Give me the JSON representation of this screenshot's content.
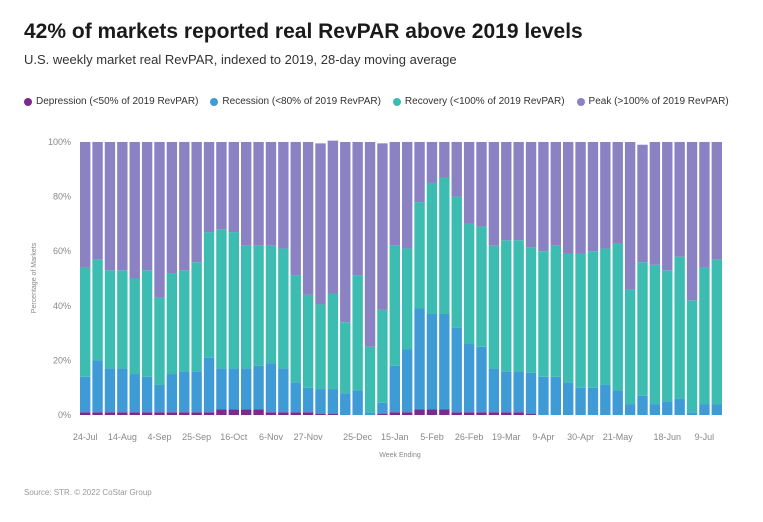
{
  "header": {
    "title": "42% of markets reported real RevPAR above 2019 levels",
    "subtitle": "U.S. weekly market real RevPAR, indexed to 2019, 28-day moving average"
  },
  "footer": {
    "source": "Source: STR. © 2022 CoStar Group"
  },
  "chart_data": {
    "type": "bar",
    "stacked": true,
    "title": "42% of markets reported real RevPAR above 2019 levels",
    "subtitle": "U.S. weekly market real RevPAR, indexed to 2019, 28-day moving average",
    "xlabel": "Week Ending",
    "ylabel": "Percentage of Markets",
    "ylim": [
      0,
      100
    ],
    "y_ticks": [
      "0%",
      "20%",
      "40%",
      "60%",
      "80%",
      "100%"
    ],
    "x_tick_labels": [
      "24-Jul",
      "14-Aug",
      "4-Sep",
      "25-Sep",
      "16-Oct",
      "6-Nov",
      "27-Nov",
      "25-Dec",
      "15-Jan",
      "5-Feb",
      "26-Feb",
      "19-Mar",
      "9-Apr",
      "30-Apr",
      "21-May",
      "18-Jun",
      "9-Jul"
    ],
    "x_tick_index": [
      0,
      3,
      6,
      9,
      12,
      15,
      18,
      22,
      25,
      28,
      31,
      34,
      37,
      40,
      43,
      47,
      50
    ],
    "legend_position": "top",
    "grid": false,
    "series": [
      {
        "name": "Depression (<50% of 2019 RevPAR)",
        "color": "#7b2c8a",
        "values": [
          1,
          1,
          1,
          1,
          1,
          1,
          1,
          1,
          1,
          1,
          1,
          2,
          2,
          2,
          2,
          1,
          1,
          1,
          1,
          0.5,
          0.5,
          0,
          0,
          0,
          0.5,
          1,
          1,
          2,
          2,
          2,
          1,
          1,
          1,
          1,
          1,
          1,
          0.5,
          0,
          0,
          0,
          0,
          0,
          0,
          0,
          0,
          0,
          0,
          0,
          0,
          0,
          0,
          0
        ]
      },
      {
        "name": "Recession (<80% of 2019 RevPAR)",
        "color": "#3e9bd6",
        "values": [
          13,
          19,
          16,
          16,
          14,
          13,
          10,
          14,
          15,
          15,
          20,
          15,
          15,
          15,
          16,
          18,
          16,
          11,
          9,
          9,
          9,
          8,
          9,
          1,
          4,
          17,
          23,
          37,
          35,
          35,
          31,
          25,
          24,
          16,
          15,
          15,
          15,
          14,
          14,
          12,
          10,
          10,
          11,
          9,
          4,
          7,
          4,
          5,
          6,
          1,
          4,
          4
        ]
      },
      {
        "name": "Recovery (<100% of 2019 RevPAR)",
        "color": "#3dbdb1",
        "values": [
          40,
          37,
          36,
          36,
          35,
          39,
          32,
          37,
          37,
          40,
          46,
          51,
          50,
          45,
          44,
          43,
          44,
          39,
          34,
          31,
          35,
          26,
          42,
          24,
          34,
          44,
          37,
          39,
          48,
          50,
          48,
          44,
          44,
          45,
          48,
          48,
          46,
          46,
          48,
          47,
          49,
          50,
          50,
          54,
          42,
          49,
          51,
          48,
          52,
          41,
          50,
          53
        ]
      },
      {
        "name": "Peak (>100% of 2019 RevPAR)",
        "color": "#8a82c2",
        "values": [
          46,
          43,
          47,
          47,
          50,
          47,
          57,
          48,
          47,
          44,
          33,
          32,
          33,
          38,
          38,
          38,
          39,
          49,
          56,
          59,
          56,
          66,
          49,
          75,
          61,
          38,
          39,
          22,
          15,
          13,
          20,
          30,
          31,
          38,
          36,
          36,
          38.5,
          40,
          38,
          41,
          41,
          40,
          39,
          37,
          54,
          43,
          45,
          47,
          42,
          58,
          46,
          43
        ]
      }
    ]
  }
}
